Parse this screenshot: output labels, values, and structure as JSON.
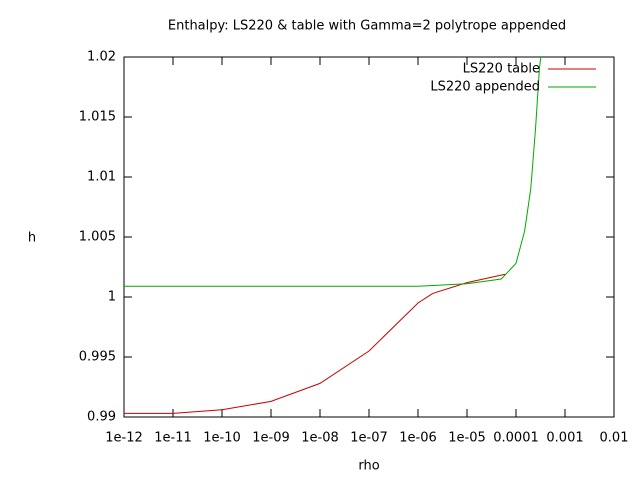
{
  "chart_data": {
    "type": "line",
    "title": "Enthalpy: LS220 & table with Gamma=2 polytrope appended",
    "x_label": "rho",
    "y_label": "h",
    "xlog": true,
    "xlim": [
      1e-12,
      0.01
    ],
    "xticks": [
      {
        "value": 1e-12,
        "label": "1e-12"
      },
      {
        "value": 1e-11,
        "label": "1e-11"
      },
      {
        "value": 1e-10,
        "label": "1e-10"
      },
      {
        "value": 1e-09,
        "label": "1e-09"
      },
      {
        "value": 1e-08,
        "label": "1e-08"
      },
      {
        "value": 1e-07,
        "label": "1e-07"
      },
      {
        "value": 1e-06,
        "label": "1e-06"
      },
      {
        "value": 1e-05,
        "label": "1e-05"
      },
      {
        "value": 0.0001,
        "label": "0.0001"
      },
      {
        "value": 0.001,
        "label": "0.001"
      },
      {
        "value": 0.01,
        "label": "0.01"
      }
    ],
    "ylim": [
      0.99,
      1.02
    ],
    "yticks": [
      0.99,
      0.995,
      1,
      1.005,
      1.01,
      1.015,
      1.02
    ],
    "legend": "top-right",
    "series": [
      {
        "name": "LS220 table",
        "color": "#cc0000",
        "x": [
          1e-12,
          1e-11,
          1e-10,
          1e-09,
          1e-08,
          1e-07,
          1e-06,
          2e-06,
          1e-05,
          6e-05
        ],
        "values": [
          0.9903,
          0.9903,
          0.9906,
          0.9913,
          0.9928,
          0.9955,
          0.9995,
          1.0003,
          1.0012,
          1.0019
        ]
      },
      {
        "name": "LS220 appended",
        "color": "#00aa00",
        "x": [
          1e-12,
          1e-08,
          1e-06,
          1e-05,
          5e-05,
          0.0001,
          0.00015,
          0.0002,
          0.00025,
          0.0003,
          0.00032
        ],
        "values": [
          1.0009,
          1.0009,
          1.0009,
          1.0011,
          1.0015,
          1.0028,
          1.0055,
          1.009,
          1.014,
          1.019,
          1.02
        ]
      }
    ]
  }
}
